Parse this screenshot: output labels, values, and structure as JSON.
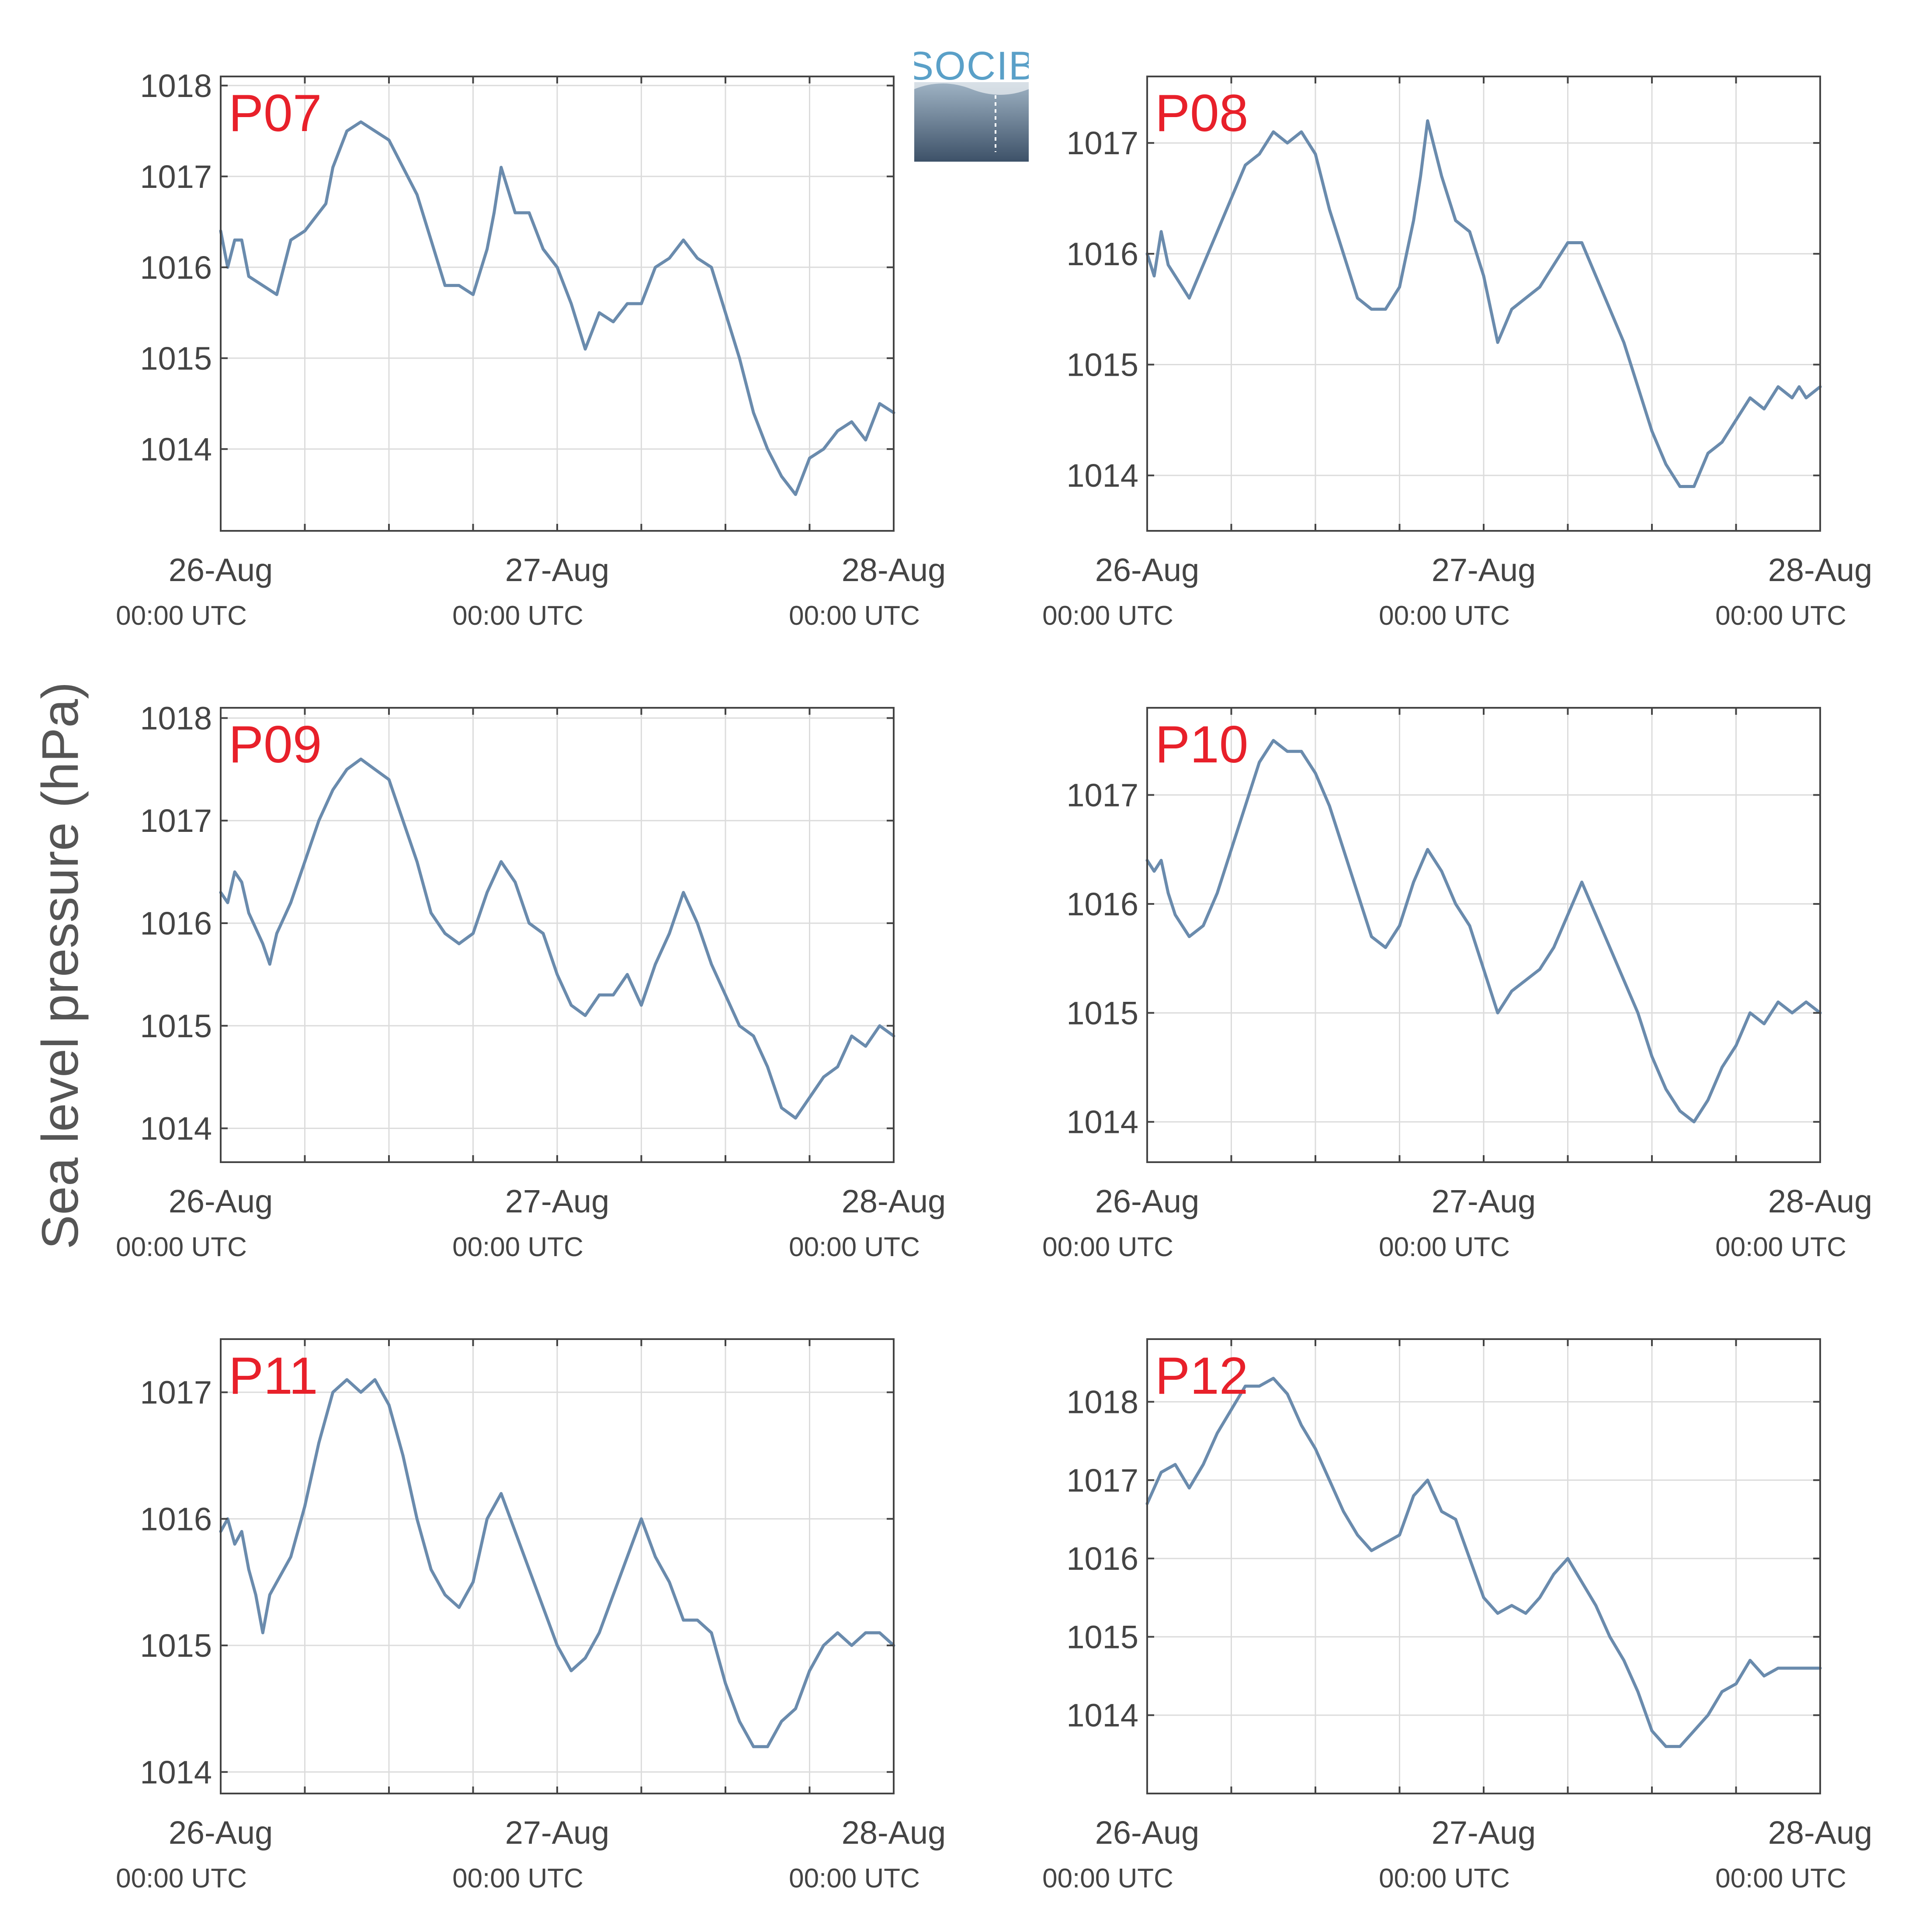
{
  "figure": {
    "ylabel": "Sea level pressure (hPa)",
    "logo_text": "SOCIB",
    "colors": {
      "line": "#6a8bad",
      "panel_label": "#e8202a",
      "grid": "#dcdcdc",
      "axis": "#444444",
      "text": "#444444"
    }
  },
  "chart_data": [
    {
      "type": "line",
      "title": "P07",
      "x_tick_labels": [
        "26-Aug",
        "27-Aug",
        "28-Aug"
      ],
      "x_tick_sublabels": [
        "00:00 UTC",
        "00:00 UTC",
        "00:00 UTC"
      ],
      "xlim_hours": [
        0,
        48
      ],
      "ylim": [
        1013.1,
        1018.1
      ],
      "yticks": [
        1014,
        1015,
        1016,
        1017,
        1018
      ],
      "grid": true,
      "x_hours": [
        0,
        0.5,
        1,
        1.5,
        2,
        3,
        4,
        5,
        6,
        7,
        7.5,
        8,
        9,
        10,
        11,
        12,
        13,
        14,
        15,
        16,
        17,
        18,
        19,
        19.5,
        20,
        21,
        22,
        23,
        24,
        25,
        26,
        27,
        28,
        29,
        30,
        31,
        32,
        33,
        34,
        35,
        36,
        37,
        38,
        39,
        40,
        41,
        42,
        43,
        44,
        45,
        46,
        46.5,
        47,
        48
      ],
      "values": [
        1016.4,
        1016.0,
        1016.3,
        1016.3,
        1015.9,
        1015.8,
        1015.7,
        1016.3,
        1016.4,
        1016.6,
        1016.7,
        1017.1,
        1017.5,
        1017.6,
        1017.5,
        1017.4,
        1017.1,
        1016.8,
        1016.3,
        1015.8,
        1015.8,
        1015.7,
        1016.2,
        1016.6,
        1017.1,
        1016.6,
        1016.6,
        1016.2,
        1016.0,
        1015.6,
        1015.1,
        1015.5,
        1015.4,
        1015.6,
        1015.6,
        1016.0,
        1016.1,
        1016.3,
        1016.1,
        1016.0,
        1015.5,
        1015.0,
        1014.4,
        1014.0,
        1013.7,
        1013.5,
        1013.9,
        1014.0,
        1014.2,
        1014.3,
        1014.1,
        1014.3,
        1014.5,
        1014.4
      ]
    },
    {
      "type": "line",
      "title": "P08",
      "x_tick_labels": [
        "26-Aug",
        "27-Aug",
        "28-Aug"
      ],
      "x_tick_sublabels": [
        "00:00 UTC",
        "00:00 UTC",
        "00:00 UTC"
      ],
      "xlim_hours": [
        0,
        48
      ],
      "ylim": [
        1013.5,
        1017.6
      ],
      "yticks": [
        1014,
        1015,
        1016,
        1017
      ],
      "grid": true,
      "x_hours": [
        0,
        0.5,
        1,
        1.5,
        2,
        3,
        4,
        5,
        6,
        7,
        8,
        9,
        10,
        11,
        12,
        13,
        14,
        15,
        16,
        17,
        18,
        19,
        19.5,
        20,
        21,
        22,
        23,
        24,
        25,
        26,
        27,
        28,
        29,
        30,
        31,
        32,
        33,
        34,
        35,
        36,
        37,
        38,
        39,
        40,
        41,
        42,
        43,
        44,
        45,
        46,
        46.5,
        47,
        48
      ],
      "values": [
        1016.0,
        1015.8,
        1016.2,
        1015.9,
        1015.8,
        1015.6,
        1015.9,
        1016.2,
        1016.5,
        1016.8,
        1016.9,
        1017.1,
        1017.0,
        1017.1,
        1016.9,
        1016.4,
        1016.0,
        1015.6,
        1015.5,
        1015.5,
        1015.7,
        1016.3,
        1016.7,
        1017.2,
        1016.7,
        1016.3,
        1016.2,
        1015.8,
        1015.2,
        1015.5,
        1015.6,
        1015.7,
        1015.9,
        1016.1,
        1016.1,
        1015.8,
        1015.5,
        1015.2,
        1014.8,
        1014.4,
        1014.1,
        1013.9,
        1013.9,
        1014.2,
        1014.3,
        1014.5,
        1014.7,
        1014.6,
        1014.8,
        1014.7,
        1014.8,
        1014.7,
        1014.8
      ]
    },
    {
      "type": "line",
      "title": "P09",
      "x_tick_labels": [
        "26-Aug",
        "27-Aug",
        "28-Aug"
      ],
      "x_tick_sublabels": [
        "00:00 UTC",
        "00:00 UTC",
        "00:00 UTC"
      ],
      "xlim_hours": [
        0,
        48
      ],
      "ylim": [
        1013.67,
        1018.1
      ],
      "yticks": [
        1014,
        1015,
        1016,
        1017,
        1018
      ],
      "grid": true,
      "x_hours": [
        0,
        0.5,
        1,
        1.5,
        2,
        3,
        3.5,
        4,
        5,
        6,
        7,
        8,
        9,
        10,
        11,
        12,
        13,
        14,
        15,
        16,
        17,
        18,
        19,
        20,
        21,
        22,
        23,
        24,
        25,
        26,
        27,
        28,
        29,
        30,
        31,
        32,
        33,
        34,
        35,
        36,
        37,
        38,
        39,
        40,
        41,
        42,
        43,
        44,
        45,
        46,
        47,
        48
      ],
      "values": [
        1016.3,
        1016.2,
        1016.5,
        1016.4,
        1016.1,
        1015.8,
        1015.6,
        1015.9,
        1016.2,
        1016.6,
        1017.0,
        1017.3,
        1017.5,
        1017.6,
        1017.5,
        1017.4,
        1017.0,
        1016.6,
        1016.1,
        1015.9,
        1015.8,
        1015.9,
        1016.3,
        1016.6,
        1016.4,
        1016.0,
        1015.9,
        1015.5,
        1015.2,
        1015.1,
        1015.3,
        1015.3,
        1015.5,
        1015.2,
        1015.6,
        1015.9,
        1016.3,
        1016.0,
        1015.6,
        1015.3,
        1015.0,
        1014.9,
        1014.6,
        1014.2,
        1014.1,
        1014.3,
        1014.5,
        1014.6,
        1014.9,
        1014.8,
        1015.0,
        1014.9
      ]
    },
    {
      "type": "line",
      "title": "P10",
      "x_tick_labels": [
        "26-Aug",
        "27-Aug",
        "28-Aug"
      ],
      "x_tick_sublabels": [
        "00:00 UTC",
        "00:00 UTC",
        "00:00 UTC"
      ],
      "xlim_hours": [
        0,
        48
      ],
      "ylim": [
        1013.63,
        1017.8
      ],
      "yticks": [
        1014,
        1015,
        1016,
        1017
      ],
      "grid": true,
      "x_hours": [
        0,
        0.5,
        1,
        1.5,
        2,
        3,
        4,
        5,
        6,
        7,
        8,
        9,
        10,
        11,
        12,
        13,
        14,
        15,
        16,
        17,
        18,
        19,
        20,
        21,
        22,
        23,
        24,
        25,
        26,
        27,
        28,
        29,
        30,
        31,
        32,
        33,
        34,
        35,
        36,
        37,
        38,
        39,
        40,
        41,
        42,
        43,
        44,
        45,
        46,
        47,
        48
      ],
      "values": [
        1016.4,
        1016.3,
        1016.4,
        1016.1,
        1015.9,
        1015.7,
        1015.8,
        1016.1,
        1016.5,
        1016.9,
        1017.3,
        1017.5,
        1017.4,
        1017.4,
        1017.2,
        1016.9,
        1016.5,
        1016.1,
        1015.7,
        1015.6,
        1015.8,
        1016.2,
        1016.5,
        1016.3,
        1016.0,
        1015.8,
        1015.4,
        1015.0,
        1015.2,
        1015.3,
        1015.4,
        1015.6,
        1015.9,
        1016.2,
        1015.9,
        1015.6,
        1015.3,
        1015.0,
        1014.6,
        1014.3,
        1014.1,
        1014.0,
        1014.2,
        1014.5,
        1014.7,
        1015.0,
        1014.9,
        1015.1,
        1015.0,
        1015.1,
        1015.0
      ]
    },
    {
      "type": "line",
      "title": "P11",
      "x_tick_labels": [
        "26-Aug",
        "27-Aug",
        "28-Aug"
      ],
      "x_tick_sublabels": [
        "00:00 UTC",
        "00:00 UTC",
        "00:00 UTC"
      ],
      "xlim_hours": [
        0,
        48
      ],
      "ylim": [
        1013.83,
        1017.42
      ],
      "yticks": [
        1014,
        1015,
        1016,
        1017
      ],
      "grid": true,
      "x_hours": [
        0,
        0.5,
        1,
        1.5,
        2,
        2.5,
        3,
        3.5,
        4,
        5,
        6,
        7,
        8,
        9,
        10,
        11,
        12,
        13,
        14,
        15,
        16,
        17,
        18,
        19,
        20,
        21,
        22,
        23,
        24,
        25,
        26,
        27,
        28,
        29,
        30,
        31,
        32,
        33,
        34,
        35,
        36,
        37,
        38,
        39,
        40,
        41,
        42,
        43,
        44,
        45,
        46,
        47,
        48
      ],
      "values": [
        1015.9,
        1016.0,
        1015.8,
        1015.9,
        1015.6,
        1015.4,
        1015.1,
        1015.4,
        1015.5,
        1015.7,
        1016.1,
        1016.6,
        1017.0,
        1017.1,
        1017.0,
        1017.1,
        1016.9,
        1016.5,
        1016.0,
        1015.6,
        1015.4,
        1015.3,
        1015.5,
        1016.0,
        1016.2,
        1015.9,
        1015.6,
        1015.3,
        1015.0,
        1014.8,
        1014.9,
        1015.1,
        1015.4,
        1015.7,
        1016.0,
        1015.7,
        1015.5,
        1015.2,
        1015.2,
        1015.1,
        1014.7,
        1014.4,
        1014.2,
        1014.2,
        1014.4,
        1014.5,
        1014.8,
        1015.0,
        1015.1,
        1015.0,
        1015.1,
        1015.1,
        1015.0
      ]
    },
    {
      "type": "line",
      "title": "P12",
      "x_tick_labels": [
        "26-Aug",
        "27-Aug",
        "28-Aug"
      ],
      "x_tick_sublabels": [
        "00:00 UTC",
        "00:00 UTC",
        "00:00 UTC"
      ],
      "xlim_hours": [
        0,
        48
      ],
      "ylim": [
        1013.0,
        1018.8
      ],
      "yticks": [
        1014,
        1015,
        1016,
        1017,
        1018
      ],
      "grid": true,
      "x_hours": [
        0,
        1,
        2,
        3,
        4,
        5,
        6,
        7,
        8,
        9,
        10,
        11,
        12,
        13,
        14,
        15,
        16,
        17,
        18,
        19,
        20,
        21,
        22,
        23,
        24,
        25,
        26,
        27,
        28,
        29,
        30,
        31,
        32,
        33,
        34,
        35,
        36,
        37,
        38,
        39,
        40,
        41,
        42,
        43,
        44,
        45,
        46,
        47,
        48
      ],
      "values": [
        1016.7,
        1017.1,
        1017.2,
        1016.9,
        1017.2,
        1017.6,
        1017.9,
        1018.2,
        1018.2,
        1018.3,
        1018.1,
        1017.7,
        1017.4,
        1017.0,
        1016.6,
        1016.3,
        1016.1,
        1016.2,
        1016.3,
        1016.8,
        1017.0,
        1016.6,
        1016.5,
        1016.0,
        1015.5,
        1015.3,
        1015.4,
        1015.3,
        1015.5,
        1015.8,
        1016.0,
        1015.7,
        1015.4,
        1015.0,
        1014.7,
        1014.3,
        1013.8,
        1013.6,
        1013.6,
        1013.8,
        1014.0,
        1014.3,
        1014.4,
        1014.7,
        1014.5,
        1014.6,
        1014.6,
        1014.6,
        1014.6
      ]
    }
  ]
}
